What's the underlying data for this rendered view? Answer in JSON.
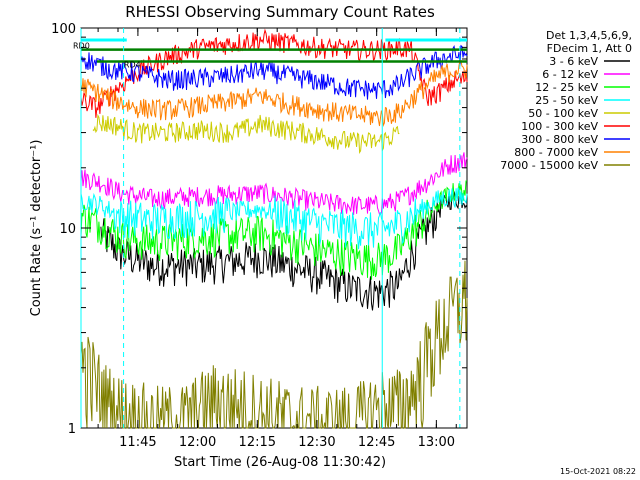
{
  "chart_data": {
    "type": "line",
    "title": "RHESSI Observing Summary Count Rates",
    "xlabel": "Start Time (26-Aug-08 11:30:42)",
    "ylabel": "Count Rate (s⁻¹ detector⁻¹)",
    "yscale": "log",
    "ylim": [
      1,
      100
    ],
    "xlim_minutes": [
      0,
      97
    ],
    "x_ticks": [
      {
        "t": 14.3,
        "label": "11:45"
      },
      {
        "t": 29.3,
        "label": "12:00"
      },
      {
        "t": 44.3,
        "label": "12:15"
      },
      {
        "t": 59.3,
        "label": "12:30"
      },
      {
        "t": 74.3,
        "label": "12:45"
      },
      {
        "t": 89.3,
        "label": "13:00"
      }
    ],
    "y_ticks": [
      {
        "v": 1,
        "label": "1"
      },
      {
        "v": 10,
        "label": "10"
      },
      {
        "v": 100,
        "label": "100"
      }
    ],
    "legend_header": [
      "Det 1,3,4,5,6,9,",
      "FDecim 1, Att 0"
    ],
    "series": [
      {
        "name": "3 - 6 keV",
        "color": "#000000",
        "x": [
          5,
          10,
          18,
          30,
          45,
          60,
          68,
          75,
          80,
          83,
          87,
          90,
          93,
          97
        ],
        "y": [
          9.5,
          7.5,
          6.5,
          6.5,
          7.2,
          5.8,
          5.0,
          4.8,
          5.2,
          7.5,
          10,
          12.5,
          14,
          14
        ]
      },
      {
        "name": "6 - 12 keV",
        "color": "#ff00ff",
        "x": [
          0,
          5,
          10,
          18,
          30,
          45,
          60,
          68,
          75,
          80,
          83,
          87,
          90,
          93,
          97
        ],
        "y": [
          18,
          17,
          15,
          14,
          14.5,
          15,
          13.5,
          13,
          13,
          13.8,
          15,
          17,
          19,
          21,
          22
        ]
      },
      {
        "name": "12 - 25 keV",
        "color": "#00ff00",
        "x": [
          0,
          5,
          10,
          18,
          30,
          45,
          60,
          68,
          75,
          80,
          83,
          87,
          90,
          93,
          97
        ],
        "y": [
          11.5,
          10.5,
          9,
          8.5,
          9,
          9.5,
          7.8,
          7.2,
          7.0,
          7.8,
          9.5,
          11.5,
          13.5,
          15,
          15.5
        ]
      },
      {
        "name": "25 - 50 keV",
        "color": "#00ffff",
        "x": [
          0,
          5,
          10,
          18,
          30,
          45,
          60,
          68,
          75,
          80,
          83,
          87,
          90,
          93,
          97
        ],
        "y": [
          14,
          13,
          11.5,
          11,
          11.5,
          12.5,
          10.5,
          10,
          9.8,
          10.5,
          11.5,
          13,
          14,
          14.5,
          14
        ]
      },
      {
        "name": "50 - 100 keV",
        "color": "#cccc00",
        "x": [
          3,
          8,
          14,
          22,
          30,
          38,
          45,
          52,
          60,
          68,
          75,
          80
        ],
        "y": [
          34,
          33,
          30,
          30,
          31,
          30,
          33,
          31,
          29,
          27,
          27,
          30
        ]
      },
      {
        "name": "100 - 300 keV",
        "color": "#ff0000",
        "x": [
          0,
          4,
          8,
          14,
          22,
          30,
          38,
          45,
          52,
          60,
          68,
          75,
          80,
          83,
          87,
          90,
          94,
          97
        ],
        "y": [
          44,
          40,
          48,
          60,
          72,
          80,
          84,
          88,
          84,
          80,
          78,
          78,
          80,
          78,
          45,
          48,
          55,
          56
        ]
      },
      {
        "name": "300 - 800 keV",
        "color": "#0000ff",
        "x": [
          0,
          4,
          8,
          14,
          22,
          30,
          38,
          45,
          52,
          60,
          68,
          75,
          80,
          83,
          87,
          90,
          94,
          97
        ],
        "y": [
          72,
          66,
          62,
          60,
          55,
          56,
          58,
          62,
          58,
          54,
          50,
          49,
          52,
          58,
          65,
          70,
          73,
          74
        ]
      },
      {
        "name": "800 - 7000 keV",
        "color": "#ff8000",
        "x": [
          0,
          4,
          8,
          14,
          22,
          30,
          38,
          45,
          52,
          60,
          68,
          75,
          80,
          83,
          87,
          90,
          94,
          97
        ],
        "y": [
          52,
          48,
          44,
          40,
          39,
          41,
          43,
          46,
          42,
          39,
          37,
          36,
          38,
          44,
          52,
          58,
          62,
          63
        ]
      },
      {
        "name": "7000 - 15000 keV",
        "color": "#808000",
        "x": [
          0,
          3,
          6,
          10,
          15,
          20,
          26,
          34,
          40,
          46,
          52,
          58,
          64,
          70,
          75,
          80,
          84,
          88,
          92,
          95,
          97
        ],
        "y": [
          2.2,
          1.8,
          1.4,
          1.2,
          1.1,
          1.05,
          1.1,
          1.4,
          1.3,
          1.2,
          1.1,
          1.05,
          1.05,
          1.1,
          1.3,
          1.3,
          1.6,
          2.6,
          3.6,
          4.2,
          4.8
        ]
      }
    ],
    "attenuator_lines": [
      {
        "label": "RD0",
        "color": "#008000",
        "x": [
          0,
          97
        ],
        "y": [
          78,
          78
        ]
      },
      {
        "label": "RD4",
        "color": "#008000",
        "x": [
          4,
          97
        ],
        "y": [
          68,
          68
        ]
      }
    ],
    "eclipse_bars_color": "#00ffff",
    "eclipse_segments": [
      [
        0,
        11.5
      ],
      [
        76.5,
        97
      ]
    ],
    "eclipse_vertical_lines": [
      0,
      10.7,
      75.7,
      95.2
    ],
    "timestamp": "15-Oct-2021 08:22"
  }
}
